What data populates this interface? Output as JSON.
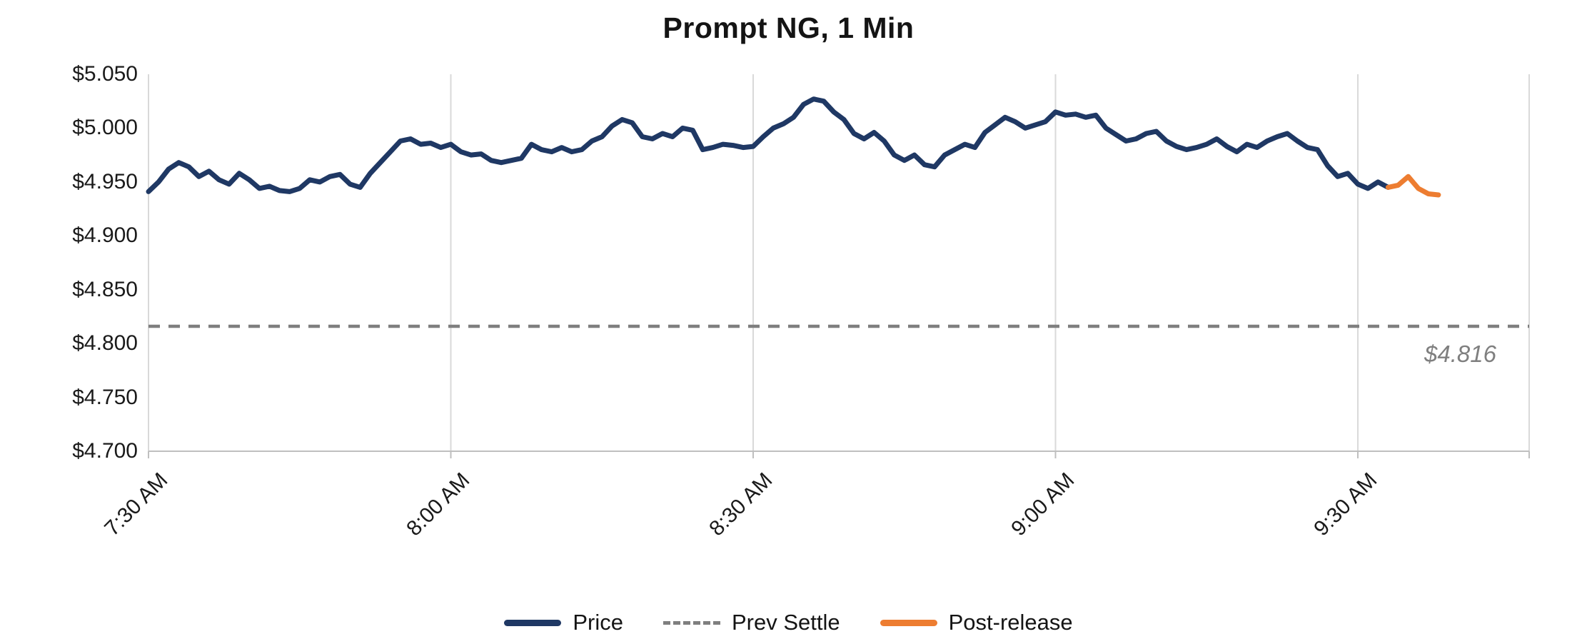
{
  "chart_data": {
    "type": "line",
    "title": "Prompt NG, 1 Min",
    "xlabel": "",
    "ylabel": "",
    "ylim": [
      4.7,
      5.05
    ],
    "xlim_minutes": [
      0,
      137
    ],
    "grid": "vertical-only",
    "legend_position": "bottom-center",
    "x_axis_start_time": "7:30 AM",
    "y_ticks": [
      {
        "label": "$5.050",
        "value": 5.05
      },
      {
        "label": "$5.000",
        "value": 5.0
      },
      {
        "label": "$4.950",
        "value": 4.95
      },
      {
        "label": "$4.900",
        "value": 4.9
      },
      {
        "label": "$4.850",
        "value": 4.85
      },
      {
        "label": "$4.800",
        "value": 4.8
      },
      {
        "label": "$4.750",
        "value": 4.75
      },
      {
        "label": "$4.700",
        "value": 4.7
      }
    ],
    "x_ticks": [
      {
        "label": "7:30 AM",
        "minute": 0
      },
      {
        "label": "8:00 AM",
        "minute": 30
      },
      {
        "label": "8:30 AM",
        "minute": 60
      },
      {
        "label": "9:00 AM",
        "minute": 90
      },
      {
        "label": "9:30 AM",
        "minute": 120
      }
    ],
    "series": [
      {
        "name": "Price",
        "style": "solid",
        "color": "#1f3864",
        "points": [
          [
            0,
            4.941
          ],
          [
            1,
            4.95
          ],
          [
            2,
            4.962
          ],
          [
            3,
            4.968
          ],
          [
            4,
            4.964
          ],
          [
            5,
            4.955
          ],
          [
            6,
            4.96
          ],
          [
            7,
            4.952
          ],
          [
            8,
            4.948
          ],
          [
            9,
            4.958
          ],
          [
            10,
            4.952
          ],
          [
            11,
            4.944
          ],
          [
            12,
            4.946
          ],
          [
            13,
            4.942
          ],
          [
            14,
            4.941
          ],
          [
            15,
            4.944
          ],
          [
            16,
            4.952
          ],
          [
            17,
            4.95
          ],
          [
            18,
            4.955
          ],
          [
            19,
            4.957
          ],
          [
            20,
            4.948
          ],
          [
            21,
            4.945
          ],
          [
            22,
            4.958
          ],
          [
            23,
            4.968
          ],
          [
            24,
            4.978
          ],
          [
            25,
            4.988
          ],
          [
            26,
            4.99
          ],
          [
            27,
            4.985
          ],
          [
            28,
            4.986
          ],
          [
            29,
            4.982
          ],
          [
            30,
            4.985
          ],
          [
            31,
            4.978
          ],
          [
            32,
            4.975
          ],
          [
            33,
            4.976
          ],
          [
            34,
            4.97
          ],
          [
            35,
            4.968
          ],
          [
            36,
            4.97
          ],
          [
            37,
            4.972
          ],
          [
            38,
            4.985
          ],
          [
            39,
            4.98
          ],
          [
            40,
            4.978
          ],
          [
            41,
            4.982
          ],
          [
            42,
            4.978
          ],
          [
            43,
            4.98
          ],
          [
            44,
            4.988
          ],
          [
            45,
            4.992
          ],
          [
            46,
            5.002
          ],
          [
            47,
            5.008
          ],
          [
            48,
            5.005
          ],
          [
            49,
            4.992
          ],
          [
            50,
            4.99
          ],
          [
            51,
            4.995
          ],
          [
            52,
            4.992
          ],
          [
            53,
            5.0
          ],
          [
            54,
            4.998
          ],
          [
            55,
            4.98
          ],
          [
            56,
            4.982
          ],
          [
            57,
            4.985
          ],
          [
            58,
            4.984
          ],
          [
            59,
            4.982
          ],
          [
            60,
            4.983
          ],
          [
            61,
            4.992
          ],
          [
            62,
            5.0
          ],
          [
            63,
            5.004
          ],
          [
            64,
            5.01
          ],
          [
            65,
            5.022
          ],
          [
            66,
            5.027
          ],
          [
            67,
            5.025
          ],
          [
            68,
            5.015
          ],
          [
            69,
            5.008
          ],
          [
            70,
            4.995
          ],
          [
            71,
            4.99
          ],
          [
            72,
            4.996
          ],
          [
            73,
            4.988
          ],
          [
            74,
            4.975
          ],
          [
            75,
            4.97
          ],
          [
            76,
            4.975
          ],
          [
            77,
            4.966
          ],
          [
            78,
            4.964
          ],
          [
            79,
            4.975
          ],
          [
            80,
            4.98
          ],
          [
            81,
            4.985
          ],
          [
            82,
            4.982
          ],
          [
            83,
            4.996
          ],
          [
            84,
            5.003
          ],
          [
            85,
            5.01
          ],
          [
            86,
            5.006
          ],
          [
            87,
            5.0
          ],
          [
            88,
            5.003
          ],
          [
            89,
            5.006
          ],
          [
            90,
            5.015
          ],
          [
            91,
            5.012
          ],
          [
            92,
            5.013
          ],
          [
            93,
            5.01
          ],
          [
            94,
            5.012
          ],
          [
            95,
            5.0
          ],
          [
            96,
            4.994
          ],
          [
            97,
            4.988
          ],
          [
            98,
            4.99
          ],
          [
            99,
            4.995
          ],
          [
            100,
            4.997
          ],
          [
            101,
            4.988
          ],
          [
            102,
            4.983
          ],
          [
            103,
            4.98
          ],
          [
            104,
            4.982
          ],
          [
            105,
            4.985
          ],
          [
            106,
            4.99
          ],
          [
            107,
            4.983
          ],
          [
            108,
            4.978
          ],
          [
            109,
            4.985
          ],
          [
            110,
            4.982
          ],
          [
            111,
            4.988
          ],
          [
            112,
            4.992
          ],
          [
            113,
            4.995
          ],
          [
            114,
            4.988
          ],
          [
            115,
            4.982
          ],
          [
            116,
            4.98
          ],
          [
            117,
            4.965
          ],
          [
            118,
            4.955
          ],
          [
            119,
            4.958
          ],
          [
            120,
            4.948
          ],
          [
            121,
            4.944
          ],
          [
            122,
            4.95
          ],
          [
            123,
            4.945
          ]
        ]
      },
      {
        "name": "Prev Settle",
        "style": "dashed",
        "color": "#7f7f7f",
        "value": 4.816,
        "annotation": "$4.816"
      },
      {
        "name": "Post-release",
        "style": "solid",
        "color": "#ed7d31",
        "points": [
          [
            123,
            4.945
          ],
          [
            124,
            4.947
          ],
          [
            125,
            4.955
          ],
          [
            126,
            4.944
          ],
          [
            127,
            4.939
          ],
          [
            128,
            4.938
          ]
        ]
      }
    ],
    "colors": {
      "price": "#1f3864",
      "prev_settle": "#7f7f7f",
      "post_release": "#ed7d31",
      "gridline": "#d9d9d9",
      "axis_line": "#bfbfbf",
      "axis_text": "#1a1a1a"
    }
  }
}
